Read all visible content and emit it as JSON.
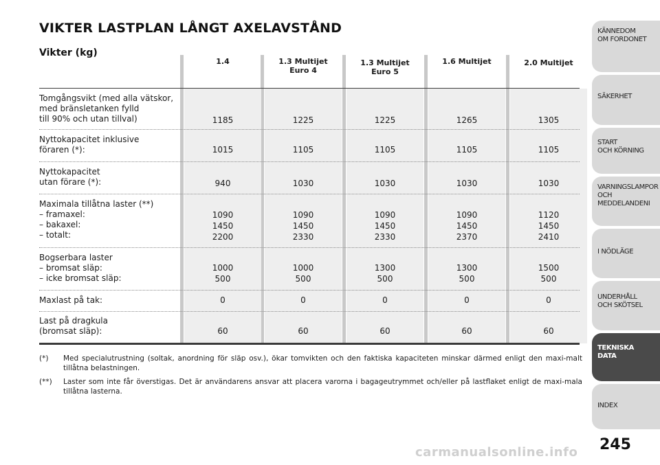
{
  "title": "VIKTER LASTPLAN LÅNGT AXELAVSTÅND",
  "table": {
    "heading": "Vikter (kg)",
    "columns": [
      "1.4",
      "1.3 Multijet\nEuro 4",
      "1.3 Multijet\nEuro 5",
      "1.6 Multijet",
      "2.0 Multijet"
    ],
    "rows": [
      {
        "label": "Tomgångsvikt (med alla vätskor,\nmed bränsletanken fylld\ntill 90% och utan tillval)",
        "values": [
          "1185",
          "1225",
          "1225",
          "1265",
          "1305"
        ]
      },
      {
        "label": "Nyttokapacitet inklusive\nföraren (*):",
        "values": [
          "1015",
          "1105",
          "1105",
          "1105",
          "1105"
        ]
      },
      {
        "label": "Nyttokapacitet\nutan förare (*):",
        "values": [
          "940",
          "1030",
          "1030",
          "1030",
          "1030"
        ]
      },
      {
        "label": "Maximala tillåtna laster (**)\n– framaxel:\n– bakaxel:\n– totalt:",
        "values": [
          "1090\n1450\n2200",
          "1090\n1450\n2330",
          "1090\n1450\n2330",
          "1090\n1450\n2370",
          "1120\n1450\n2410"
        ]
      },
      {
        "label": "Bogserbara laster\n– bromsat släp:\n– icke bromsat släp:",
        "values": [
          "1000\n500",
          "1000\n500",
          "1300\n500",
          "1300\n500",
          "1500\n500"
        ]
      },
      {
        "label": "Maxlast på tak:",
        "values": [
          "0",
          "0",
          "0",
          "0",
          "0"
        ]
      },
      {
        "label": "Last på dragkula\n(bromsat släp):",
        "values": [
          "60",
          "60",
          "60",
          "60",
          "60"
        ]
      }
    ]
  },
  "footnotes": [
    {
      "mark": "(*)",
      "text": "Med specialutrustning (soltak, anordning för släp osv.), ökar tomvikten och den faktiska kapaciteten minskar därmed enligt den maxi-malt tillåtna belastningen."
    },
    {
      "mark": "(**)",
      "text": "Laster som inte får överstigas. Det är användarens ansvar att placera varorna i bagageutrymmet och/eller på lastflaket enligt de maxi-mala tillåtna lasterna."
    }
  ],
  "sidebar": {
    "tabs": [
      {
        "label": "KÄNNEDOM\nOM FORDONET",
        "active": false
      },
      {
        "label": "SÄKERHET",
        "active": false
      },
      {
        "label": "START\nOCH KÖRNING",
        "active": false
      },
      {
        "label": "VARNINGSLAMPOR\nOCH\nMEDDELANDENI",
        "active": false
      },
      {
        "label": "I NÖDLÄGE",
        "active": false
      },
      {
        "label": "UNDERHÅLL\nOCH SKÖTSEL",
        "active": false
      },
      {
        "label": "TEKNISKA\nDATA",
        "active": true
      },
      {
        "label": "INDEX",
        "active": false
      }
    ]
  },
  "page_number": "245",
  "watermark": "carmanualsonline.info"
}
